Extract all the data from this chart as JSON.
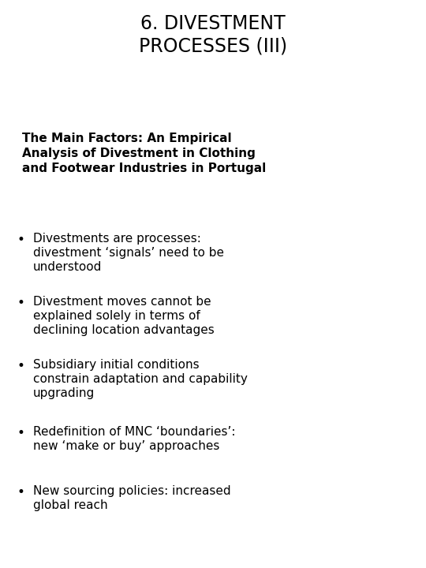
{
  "title": "6. DIVESTMENT\nPROCESSES (III)",
  "subtitle": "The Main Factors: An Empirical\nAnalysis of Divestment in Clothing\nand Footwear Industries in Portugal",
  "bullet_points": [
    "Divestments are processes:\ndivestment ‘signals’ need to be\nunderstood",
    "Divestment moves cannot be\nexplained solely in terms of\ndeclining location advantages",
    "Subsidiary initial conditions\nconstrain adaptation and capability\nupgrading",
    "Redefinition of MNC ‘boundaries’:\nnew ‘make or buy’ approaches",
    "New sourcing policies: increased\nglobal reach"
  ],
  "background_color": "#ffffff",
  "text_color": "#000000",
  "title_fontsize": 17,
  "subtitle_fontsize": 11,
  "bullet_fontsize": 11,
  "figwidth": 5.4,
  "figheight": 7.2,
  "dpi": 100
}
